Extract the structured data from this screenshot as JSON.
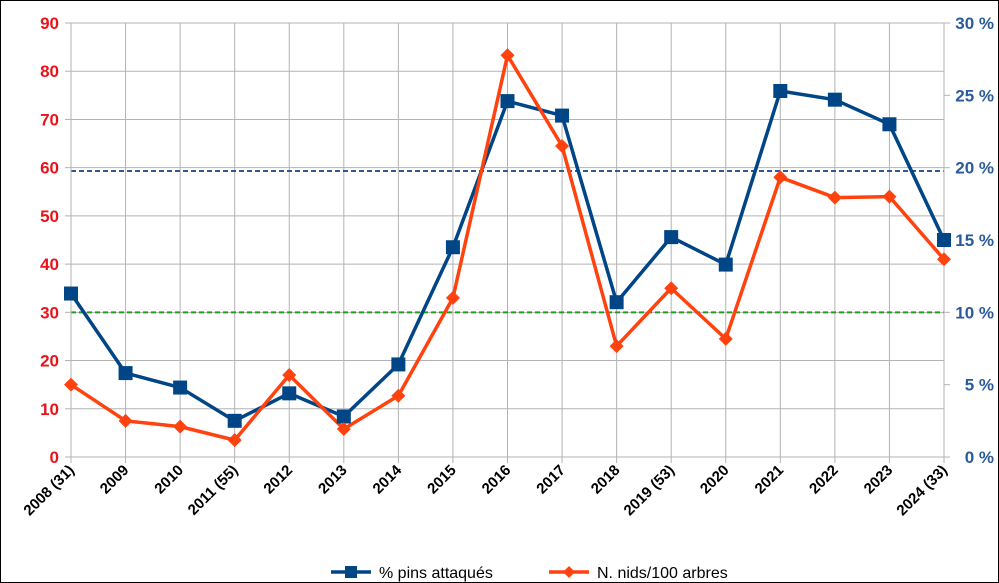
{
  "chart_data": {
    "type": "line",
    "categories": [
      "2008 (31)",
      "2009",
      "2010",
      "2011 (55)",
      "2012",
      "2013",
      "2014",
      "2015",
      "2016",
      "2017",
      "2018",
      "2019 (53)",
      "2020",
      "2021",
      "2022",
      "2023",
      "2024 (33)"
    ],
    "series": [
      {
        "name": "% pins attaqués",
        "axis": "right",
        "color": "#004586",
        "marker": "square",
        "values": [
          11.3,
          5.8,
          4.8,
          2.5,
          4.4,
          2.8,
          6.4,
          14.5,
          24.6,
          23.6,
          10.7,
          15.2,
          13.3,
          25.3,
          24.7,
          23.0,
          15.0
        ]
      },
      {
        "name": "N. nids/100 arbres",
        "axis": "left",
        "color": "#ff420e",
        "marker": "diamond",
        "values": [
          15,
          7.5,
          6.3,
          3.5,
          17,
          5.8,
          12.7,
          33,
          83.3,
          64.5,
          23,
          35,
          24.5,
          58,
          53.8,
          54,
          41
        ]
      }
    ],
    "left_axis": {
      "ylim": [
        0,
        90
      ],
      "ticks": [
        "0",
        "10",
        "20",
        "30",
        "40",
        "50",
        "60",
        "70",
        "80",
        "90"
      ],
      "color": "#e8141b"
    },
    "right_axis": {
      "ylim": [
        0,
        30
      ],
      "ticks": [
        "0 %",
        "5 %",
        "10 %",
        "15 %",
        "20 %",
        "25 %",
        "30 %"
      ],
      "color": "#2a5a9a"
    },
    "reference_lines": [
      {
        "axis": "left",
        "value": 59.3,
        "color": "#2a5a9a",
        "style": "dashed"
      },
      {
        "axis": "left",
        "value": 30,
        "color": "#1aa31a",
        "style": "dashed"
      }
    ],
    "grid": true,
    "legend": {
      "position": "bottom",
      "entries": [
        "% pins attaqués",
        "N. nids/100 arbres"
      ]
    }
  }
}
